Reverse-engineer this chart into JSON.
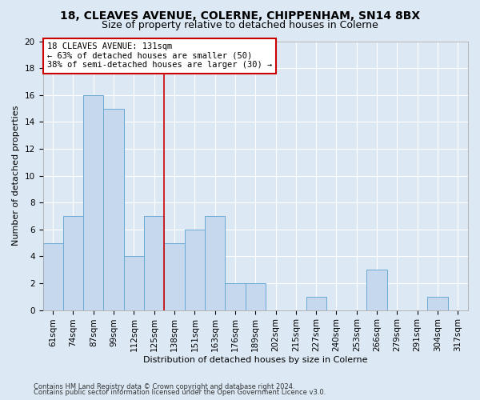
{
  "title1": "18, CLEAVES AVENUE, COLERNE, CHIPPENHAM, SN14 8BX",
  "title2": "Size of property relative to detached houses in Colerne",
  "xlabel": "Distribution of detached houses by size in Colerne",
  "ylabel": "Number of detached properties",
  "categories": [
    "61sqm",
    "74sqm",
    "87sqm",
    "99sqm",
    "112sqm",
    "125sqm",
    "138sqm",
    "151sqm",
    "163sqm",
    "176sqm",
    "189sqm",
    "202sqm",
    "215sqm",
    "227sqm",
    "240sqm",
    "253sqm",
    "266sqm",
    "279sqm",
    "291sqm",
    "304sqm",
    "317sqm"
  ],
  "values": [
    5,
    7,
    16,
    15,
    4,
    7,
    5,
    6,
    7,
    2,
    2,
    0,
    0,
    1,
    0,
    0,
    3,
    0,
    0,
    1,
    0
  ],
  "bar_color": "#c5d8ee",
  "bar_edge_color": "#6aaad4",
  "vline_position": 5.5,
  "vline_color": "#cc0000",
  "annotation_line1": "18 CLEAVES AVENUE: 131sqm",
  "annotation_line2": "← 63% of detached houses are smaller (50)",
  "annotation_line3": "38% of semi-detached houses are larger (30) →",
  "annotation_box_color": "#cc0000",
  "ylim": [
    0,
    20
  ],
  "yticks": [
    0,
    2,
    4,
    6,
    8,
    10,
    12,
    14,
    16,
    18,
    20
  ],
  "footer1": "Contains HM Land Registry data © Crown copyright and database right 2024.",
  "footer2": "Contains public sector information licensed under the Open Government Licence v3.0.",
  "bg_color": "#dce9f5",
  "plot_bg_color": "#dce9f5",
  "grid_color": "#ffffff",
  "title1_fontsize": 10,
  "title2_fontsize": 9,
  "axis_label_fontsize": 8,
  "tick_fontsize": 7.5,
  "annotation_fontsize": 7.5,
  "footer_fontsize": 6
}
